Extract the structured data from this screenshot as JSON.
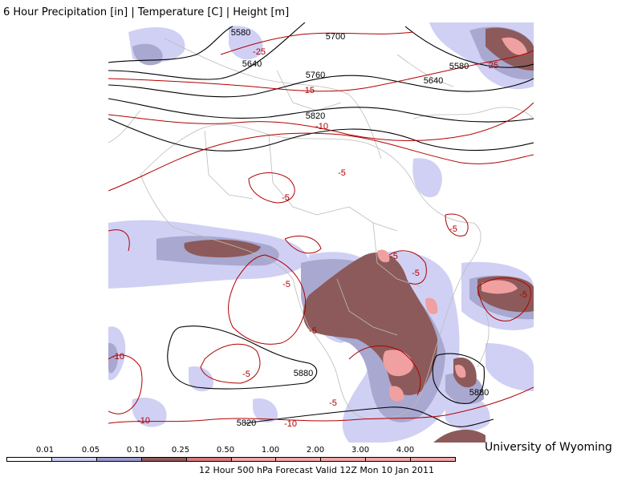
{
  "header": {
    "title": "6 Hour Precipitation [in] | Temperature [C] | Height [m]"
  },
  "credit": "University of Wyoming",
  "footer": "12 Hour 500 hPa Forecast Valid 12Z Mon 10 Jan 2011",
  "legend": {
    "labels": [
      "0.01",
      "0.05",
      "0.10",
      "0.25",
      "0.50",
      "1.00",
      "2.00",
      "3.00",
      "4.00"
    ],
    "colors": [
      "#ffffff",
      "#ccccf0",
      "#9999c8",
      "#8c5a5a",
      "#d87878",
      "#f0a8a8",
      "#f0a8a8",
      "#f0a8a8",
      "#f0a8a8",
      "#f0a8a8"
    ]
  },
  "colors": {
    "height_contour": "#000000",
    "temperature_contour": "#b00000",
    "borders": "#bbbbbb",
    "precip_light": "#d0d0f4",
    "precip_moderate": "#a8a8d0",
    "precip_heavy": "#8c5a5a",
    "precip_very_heavy": "#f0a0a0"
  },
  "height_labels": [
    "5580",
    "5640",
    "5700",
    "5760",
    "5820",
    "5580",
    "5640",
    "5880",
    "5880",
    "5820"
  ],
  "temperature_labels": [
    "-25",
    "-15",
    "-10",
    "-25",
    "-5",
    "-5",
    "-5",
    "-5",
    "-5",
    "-5",
    "-5",
    "-5",
    "-10",
    "-5",
    "-10",
    "-10",
    "-5"
  ]
}
